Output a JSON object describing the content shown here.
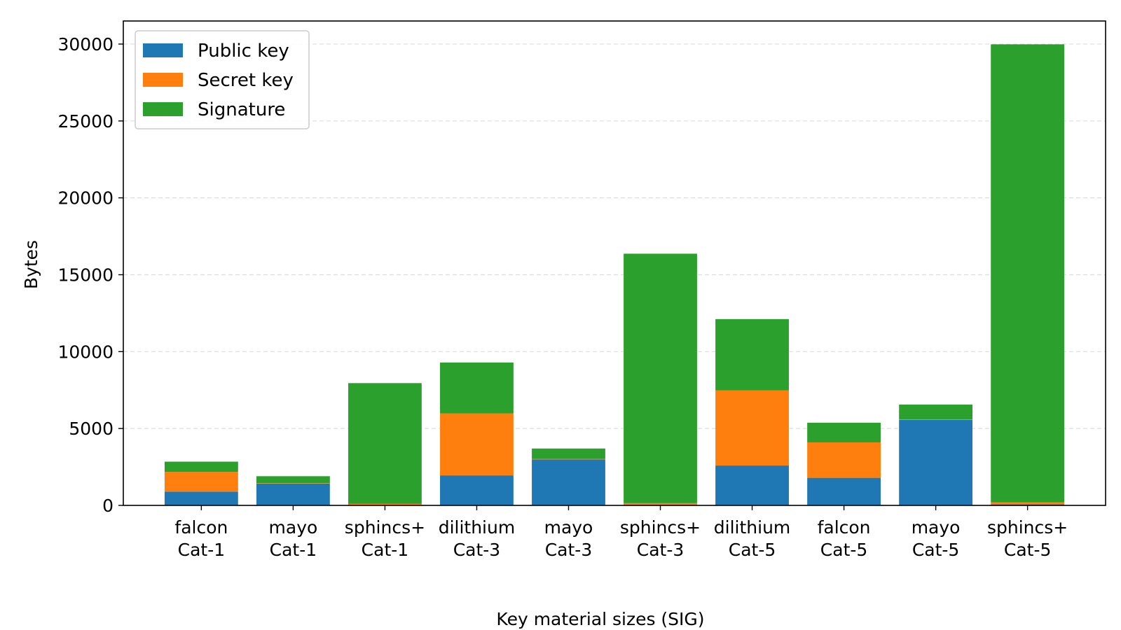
{
  "chart_data": {
    "type": "bar",
    "stacked": true,
    "categories": [
      [
        "falcon",
        "Cat-1"
      ],
      [
        "mayo",
        "Cat-1"
      ],
      [
        "sphincs+",
        "Cat-1"
      ],
      [
        "dilithium",
        "Cat-3"
      ],
      [
        "mayo",
        "Cat-3"
      ],
      [
        "sphincs+",
        "Cat-3"
      ],
      [
        "dilithium",
        "Cat-5"
      ],
      [
        "falcon",
        "Cat-5"
      ],
      [
        "mayo",
        "Cat-5"
      ],
      [
        "sphincs+",
        "Cat-5"
      ]
    ],
    "series": [
      {
        "name": "Public key",
        "color": "#1f77b4",
        "values": [
          897,
          1420,
          32,
          1952,
          2986,
          48,
          2592,
          1793,
          5554,
          64
        ]
      },
      {
        "name": "Secret key",
        "color": "#ff7f0e",
        "values": [
          1281,
          24,
          64,
          4032,
          32,
          96,
          4896,
          2305,
          40,
          128
        ]
      },
      {
        "name": "Signature",
        "color": "#2ca02c",
        "values": [
          666,
          454,
          7856,
          3309,
          681,
          16224,
          4627,
          1280,
          964,
          29792
        ]
      }
    ],
    "xlabel": "Key material sizes (SIG)",
    "ylabel": "Bytes",
    "ylim": [
      0,
      31500
    ],
    "yticks": [
      0,
      5000,
      10000,
      15000,
      20000,
      25000,
      30000
    ],
    "grid": "y-dashed",
    "legend_position": "top-left"
  }
}
